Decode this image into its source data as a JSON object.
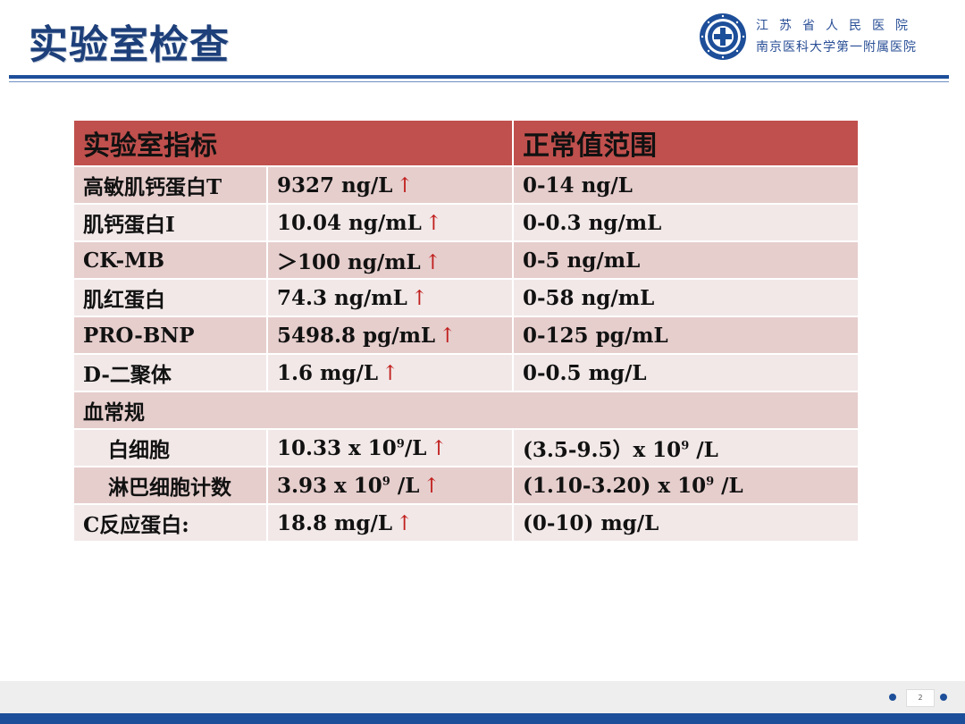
{
  "header": {
    "title": "实验室检查",
    "hospital_name": "江苏省人民医院",
    "hospital_sub": "南京医科大学第一附属医院",
    "logo_icon": "hospital-emblem-icon",
    "accent_color": "#1d4e99"
  },
  "table": {
    "headers": [
      "实验室指标",
      "正常值范围"
    ],
    "header_color": "#c0504d",
    "rows": [
      {
        "name": "高敏肌钙蛋白T",
        "value": "9327 ng/L",
        "range": "0-14 ng/L"
      },
      {
        "name": "肌钙蛋白I",
        "value": "10.04 ng/mL",
        "range": "0-0.3 ng/mL"
      },
      {
        "name": "CK-MB",
        "value": "＞100 ng/mL",
        "range": "0-5 ng/mL"
      },
      {
        "name": "肌红蛋白",
        "value": "74.3 ng/mL",
        "range": "0-58 ng/mL"
      },
      {
        "name": "PRO-BNP",
        "value": "5498.8 pg/mL",
        "range": "0-125 pg/mL"
      },
      {
        "name": "D-二聚体",
        "value": "1.6 mg/L",
        "range": "0-0.5 mg/L"
      },
      {
        "name": "血常规"
      },
      {
        "name": "白细胞",
        "value_pre": "10.33 x 10",
        "value_sup": "9",
        "value_post": "/L",
        "range_pre": "(3.5-9.5）x 10",
        "range_sup": "9",
        "range_post": " /L"
      },
      {
        "name": "淋巴细胞计数",
        "value_pre": "3.93 x 10",
        "value_sup": "9",
        "value_post": " /L",
        "range_pre": "(1.10-3.20) x 10",
        "range_sup": "9",
        "range_post": " /L"
      },
      {
        "name": "C反应蛋白:",
        "value": "18.8 mg/L",
        "range": "(0-10) mg/L"
      }
    ],
    "arrow": "↑",
    "arrow_color": "#c0201e"
  },
  "footer": {
    "page_number": "2"
  }
}
